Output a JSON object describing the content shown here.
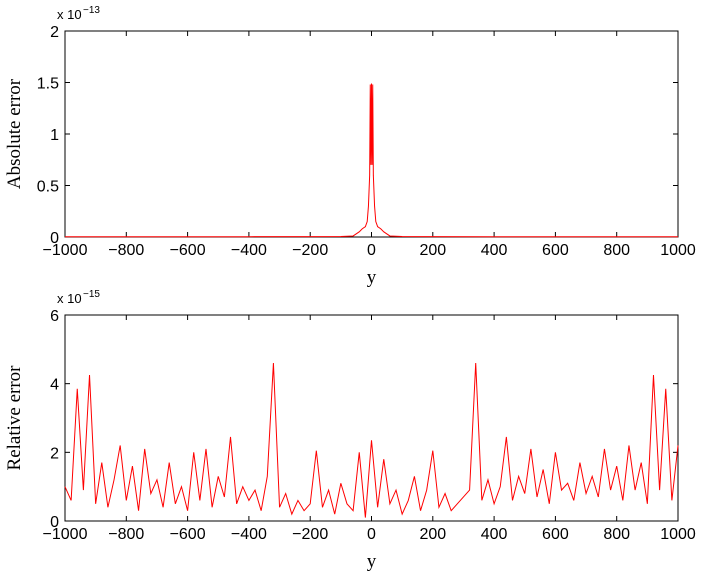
{
  "chart_data": [
    {
      "type": "line",
      "x_label": "y",
      "y_label": "Absolute error",
      "multiplier": "x 10",
      "exponent": "−13",
      "xlim": [
        -1000,
        1000
      ],
      "ylim": [
        0,
        2
      ],
      "xticks": [
        {
          "value": -1000,
          "label": "−1000"
        },
        {
          "value": -800,
          "label": "−800"
        },
        {
          "value": -600,
          "label": "−600"
        },
        {
          "value": -400,
          "label": "−400"
        },
        {
          "value": -200,
          "label": "−200"
        },
        0,
        200,
        400,
        600,
        800,
        1000
      ],
      "yticks": [
        0,
        0.5,
        1,
        1.5,
        2
      ],
      "x": [
        -1000,
        -800,
        -600,
        -400,
        -200,
        -100,
        -60,
        -40,
        -30,
        -20,
        -14,
        -10,
        -6,
        -4,
        -2,
        0,
        2,
        4,
        6,
        10,
        14,
        20,
        30,
        40,
        60,
        100,
        200,
        400,
        600,
        800,
        1000
      ],
      "series": [
        {
          "color": "#ff0000",
          "values": [
            0.002,
            0.002,
            0.002,
            0.003,
            0.004,
            0.005,
            0.01,
            0.05,
            0.08,
            0.1,
            0.15,
            0.3,
            0.6,
            1.48,
            0.7,
            1.49,
            0.7,
            1.48,
            0.6,
            0.3,
            0.15,
            0.1,
            0.08,
            0.05,
            0.01,
            0.005,
            0.004,
            0.003,
            0.002,
            0.002,
            0.002
          ]
        }
      ]
    },
    {
      "type": "line",
      "x_label": "y",
      "y_label": "Relative error",
      "multiplier": "x 10",
      "exponent": "−15",
      "xlim": [
        -1000,
        1000
      ],
      "ylim": [
        0,
        6
      ],
      "xticks": [
        {
          "value": -1000,
          "label": "−1000"
        },
        {
          "value": -800,
          "label": "−800"
        },
        {
          "value": -600,
          "label": "−600"
        },
        {
          "value": -400,
          "label": "−400"
        },
        {
          "value": -200,
          "label": "−200"
        },
        0,
        200,
        400,
        600,
        800,
        1000
      ],
      "yticks": [
        0,
        2,
        4,
        6
      ],
      "x": [
        -1000,
        -980,
        -960,
        -940,
        -920,
        -900,
        -880,
        -860,
        -840,
        -820,
        -800,
        -780,
        -760,
        -740,
        -720,
        -700,
        -680,
        -660,
        -640,
        -620,
        -600,
        -580,
        -560,
        -540,
        -520,
        -500,
        -480,
        -460,
        -440,
        -420,
        -400,
        -380,
        -360,
        -340,
        -320,
        -300,
        -280,
        -260,
        -240,
        -220,
        -200,
        -180,
        -160,
        -140,
        -120,
        -100,
        -80,
        -60,
        -40,
        -20,
        0,
        20,
        40,
        60,
        80,
        100,
        120,
        140,
        160,
        180,
        200,
        220,
        240,
        260,
        280,
        300,
        320,
        340,
        360,
        380,
        400,
        420,
        440,
        460,
        480,
        500,
        520,
        540,
        560,
        580,
        600,
        620,
        640,
        660,
        680,
        700,
        720,
        740,
        760,
        780,
        800,
        820,
        840,
        860,
        880,
        900,
        920,
        940,
        960,
        980,
        1000
      ],
      "series": [
        {
          "color": "#ff0000",
          "values": [
            1.0,
            0.6,
            3.85,
            0.9,
            4.25,
            0.5,
            1.7,
            0.4,
            1.2,
            2.2,
            0.6,
            1.6,
            0.3,
            2.1,
            0.8,
            1.2,
            0.4,
            1.7,
            0.5,
            1.0,
            0.3,
            2.0,
            0.6,
            2.1,
            0.4,
            1.3,
            0.7,
            2.45,
            0.5,
            1.0,
            0.6,
            0.9,
            0.3,
            1.3,
            4.6,
            0.4,
            0.8,
            0.2,
            0.6,
            0.3,
            0.5,
            2.05,
            0.4,
            0.9,
            0.2,
            1.1,
            0.5,
            0.3,
            2.0,
            0.1,
            2.35,
            0.4,
            1.8,
            0.5,
            0.9,
            0.2,
            0.6,
            1.3,
            0.3,
            0.9,
            2.05,
            0.4,
            0.8,
            0.3,
            0.5,
            0.7,
            0.9,
            4.6,
            0.6,
            1.2,
            0.5,
            1.0,
            2.45,
            0.6,
            1.3,
            0.8,
            2.1,
            0.7,
            1.5,
            0.5,
            2.0,
            0.9,
            1.1,
            0.6,
            1.7,
            0.8,
            1.3,
            0.7,
            2.1,
            0.9,
            1.6,
            0.6,
            2.2,
            0.9,
            1.7,
            0.5,
            4.25,
            0.9,
            3.85,
            0.6,
            2.2
          ]
        }
      ]
    }
  ]
}
